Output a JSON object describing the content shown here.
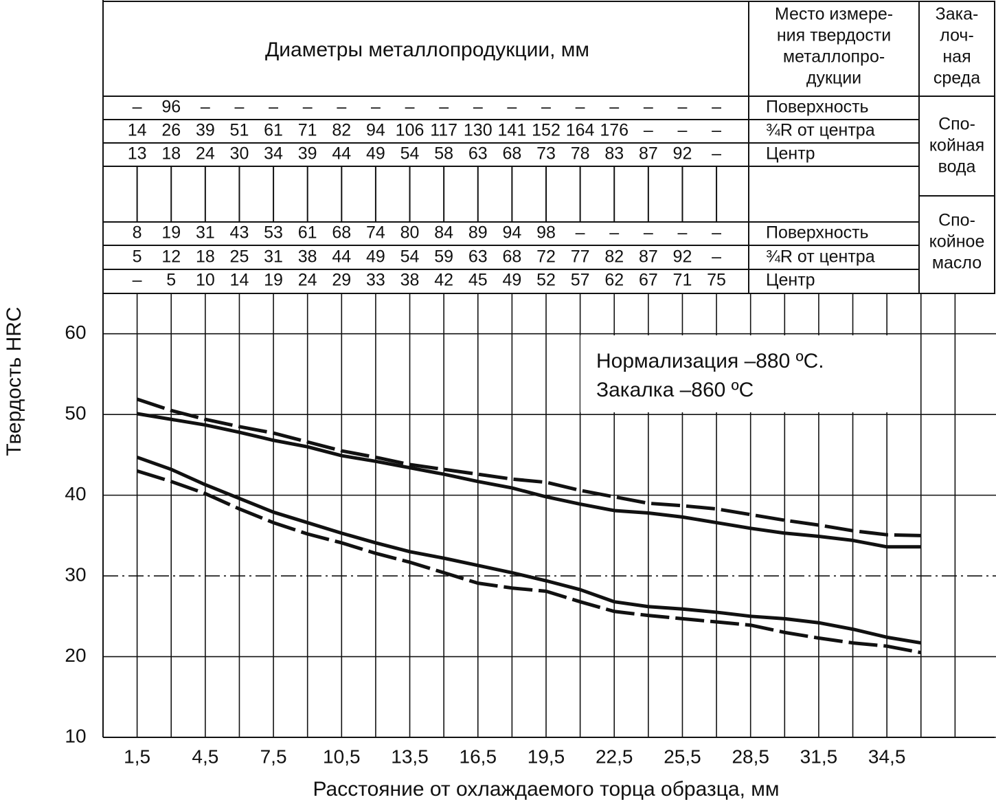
{
  "table": {
    "header": {
      "diameters": "Диаметры металлопродукции, мм",
      "location": [
        "Место измере-",
        "ния твердости",
        "металлопро-",
        "дукции"
      ],
      "medium": [
        "Зака-",
        "лоч-",
        "ная",
        "среда"
      ]
    },
    "groups": [
      {
        "medium": [
          "Спо-",
          "койная",
          "вода"
        ],
        "rows": [
          {
            "label": "Поверхность",
            "values": [
              "–",
              96,
              "–",
              "–",
              "–",
              "–",
              "–",
              "–",
              "–",
              "–",
              "–",
              "–",
              "–",
              "–",
              "–",
              "–",
              "–",
              "–"
            ]
          },
          {
            "label": "¾R от центра",
            "values": [
              14,
              26,
              39,
              51,
              61,
              71,
              82,
              94,
              106,
              117,
              130,
              141,
              152,
              164,
              176,
              "–",
              "–",
              "–"
            ]
          },
          {
            "label": "Центр",
            "values": [
              13,
              18,
              24,
              30,
              34,
              39,
              44,
              49,
              54,
              58,
              63,
              68,
              73,
              78,
              83,
              87,
              92,
              "–"
            ]
          }
        ]
      },
      {
        "medium": [
          "Спо-",
          "койное",
          "масло"
        ],
        "rows": [
          {
            "label": "Поверхность",
            "values": [
              8,
              19,
              31,
              43,
              53,
              61,
              68,
              74,
              80,
              84,
              89,
              94,
              98,
              "–",
              "–",
              "–",
              "–",
              "–"
            ]
          },
          {
            "label": "¾R от центра",
            "values": [
              5,
              12,
              18,
              25,
              31,
              38,
              44,
              49,
              54,
              59,
              63,
              68,
              72,
              77,
              82,
              87,
              92,
              "–"
            ]
          },
          {
            "label": "Центр",
            "values": [
              "–",
              5,
              10,
              14,
              19,
              24,
              29,
              33,
              38,
              42,
              45,
              49,
              52,
              57,
              62,
              67,
              71,
              75
            ]
          }
        ]
      }
    ]
  },
  "chart_data": {
    "type": "line",
    "x_label": "Расстояние от охлаждаемого торца образца, мм",
    "y_label": "Твердость HRC",
    "annotation": [
      "Нормализация –880 ºС.",
      "Закалка –860 ºС"
    ],
    "x": [
      1.5,
      3,
      4.5,
      6,
      7.5,
      9,
      10.5,
      12,
      13.5,
      15,
      16.5,
      18,
      19.5,
      21,
      22.5,
      24,
      25.5,
      27,
      28.5,
      30,
      31.5,
      33,
      34.5,
      36
    ],
    "series": [
      {
        "color": "#111111",
        "dash": true,
        "values": [
          51.9,
          50.5,
          49.4,
          48.5,
          47.7,
          46.6,
          45.5,
          44.7,
          43.8,
          43.2,
          42.6,
          42.0,
          41.6,
          40.6,
          39.8,
          39.0,
          38.7,
          38.3,
          37.6,
          36.9,
          36.3,
          35.6,
          35.1,
          35.0
        ]
      },
      {
        "color": "#111111",
        "dash": false,
        "values": [
          50.1,
          49.4,
          48.7,
          47.8,
          46.8,
          46.0,
          44.9,
          44.2,
          43.4,
          42.6,
          41.7,
          40.9,
          39.8,
          38.9,
          38.1,
          37.8,
          37.3,
          36.6,
          35.9,
          35.3,
          34.9,
          34.4,
          33.6,
          33.6
        ]
      },
      {
        "color": "#111111",
        "dash": false,
        "values": [
          44.7,
          43.2,
          41.3,
          39.6,
          37.9,
          36.6,
          35.3,
          34.1,
          33.0,
          32.2,
          31.3,
          30.4,
          29.4,
          28.3,
          26.8,
          26.2,
          25.9,
          25.5,
          25.0,
          24.7,
          24.2,
          23.4,
          22.4,
          21.7
        ]
      },
      {
        "color": "#111111",
        "dash": true,
        "values": [
          43.0,
          41.7,
          40.2,
          38.3,
          36.6,
          35.2,
          34.1,
          32.8,
          31.7,
          30.4,
          29.1,
          28.5,
          28.1,
          26.8,
          25.6,
          25.1,
          24.7,
          24.3,
          23.9,
          23.0,
          22.3,
          21.7,
          21.3,
          20.5
        ]
      }
    ],
    "xlim": [
      0,
      39
    ],
    "ylim": [
      10,
      65
    ],
    "xticks": [
      {
        "value": 1.5,
        "label": "1,5"
      },
      {
        "value": 4.5,
        "label": "4,5"
      },
      {
        "value": 7.5,
        "label": "7,5"
      },
      {
        "value": 10.5,
        "label": "10,5"
      },
      {
        "value": 13.5,
        "label": "13,5"
      },
      {
        "value": 16.5,
        "label": "16,5"
      },
      {
        "value": 19.5,
        "label": "19,5"
      },
      {
        "value": 22.5,
        "label": "22,5"
      },
      {
        "value": 25.5,
        "label": "25,5"
      },
      {
        "value": 28.5,
        "label": "28,5"
      },
      {
        "value": 31.5,
        "label": "31,5"
      },
      {
        "value": 34.5,
        "label": "34,5"
      }
    ],
    "x_minor_ticks": [
      3,
      6,
      9,
      12,
      15,
      18,
      21,
      24,
      27,
      30,
      33,
      36,
      37.5
    ],
    "yticks": [
      10,
      20,
      30,
      40,
      50,
      60
    ],
    "ytick_styles": [
      "solid",
      "solid",
      "dashdot",
      "solid",
      "solid",
      "solid"
    ],
    "grid": true
  }
}
